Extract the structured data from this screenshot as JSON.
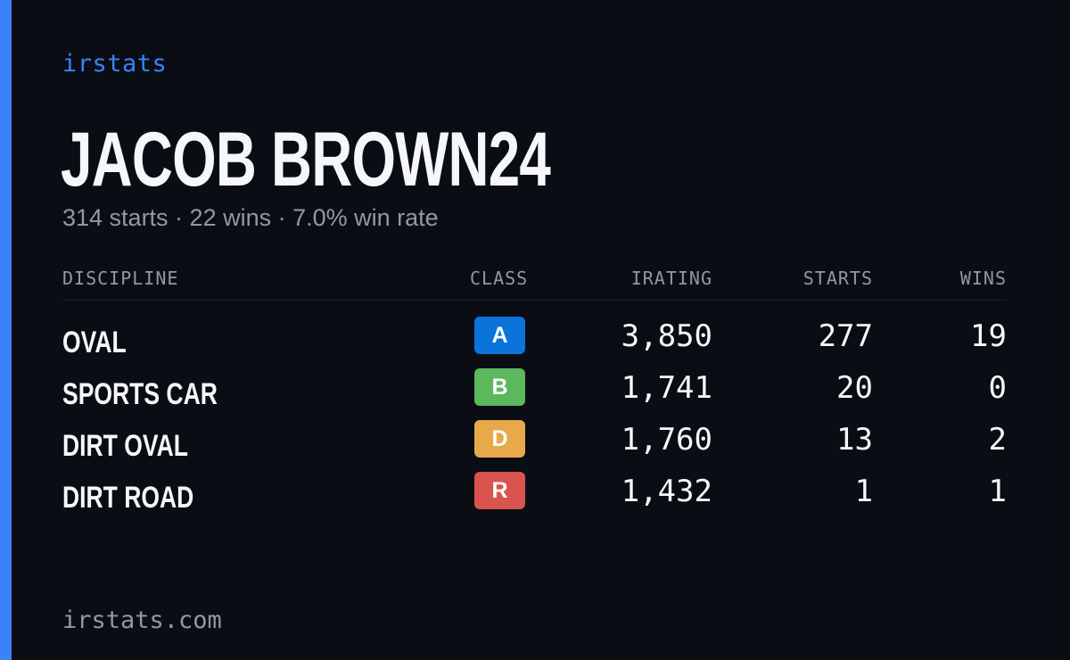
{
  "brand": {
    "name": "irstats",
    "accent_color": "#3b82f6"
  },
  "profile": {
    "name": "JACOB BROWN24",
    "summary": "314 starts · 22 wins · 7.0% win rate"
  },
  "table": {
    "headers": {
      "discipline": "DISCIPLINE",
      "class": "CLASS",
      "irating": "IRATING",
      "starts": "STARTS",
      "wins": "WINS"
    },
    "rows": [
      {
        "discipline": "OVAL",
        "class": "A",
        "class_color": "#0a74da",
        "irating": "3,850",
        "starts": "277",
        "wins": "19"
      },
      {
        "discipline": "SPORTS CAR",
        "class": "B",
        "class_color": "#5cb85c",
        "irating": "1,741",
        "starts": "20",
        "wins": "0"
      },
      {
        "discipline": "DIRT OVAL",
        "class": "D",
        "class_color": "#e8a94a",
        "irating": "1,760",
        "starts": "13",
        "wins": "2"
      },
      {
        "discipline": "DIRT ROAD",
        "class": "R",
        "class_color": "#d9534f",
        "irating": "1,432",
        "starts": "1",
        "wins": "1"
      }
    ]
  },
  "footer": {
    "url": "irstats.com"
  }
}
